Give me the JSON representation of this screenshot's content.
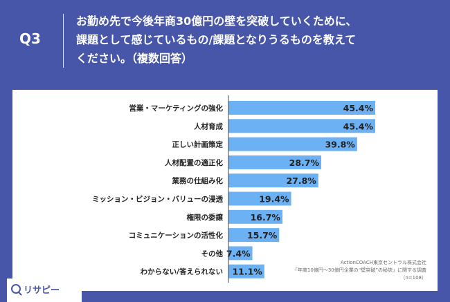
{
  "question": {
    "label": "Q3",
    "lines": [
      "お勤め先で今後年商30億円の壁を突破していくために、",
      "課題として感じているもの/課題となりうるものを教えて",
      "ください。（複数回答）"
    ]
  },
  "chart_data": {
    "type": "bar",
    "orientation": "horizontal",
    "categories": [
      "営業・マーケティングの強化",
      "人材育成",
      "正しい計画策定",
      "人材配置の適正化",
      "業務の仕組み化",
      "ミッション・ビジョン・バリューの浸透",
      "権限の委譲",
      "コミュニケーションの活性化",
      "その他",
      "わからない/答えられない"
    ],
    "values": [
      45.4,
      45.4,
      39.8,
      28.7,
      27.8,
      19.4,
      16.7,
      15.7,
      7.4,
      11.1
    ],
    "value_labels": [
      "45.4%",
      "45.4%",
      "39.8%",
      "28.7%",
      "27.8%",
      "19.4%",
      "16.7%",
      "15.7%",
      "7.4%",
      "11.1%"
    ],
    "xlim": [
      0,
      45.4
    ],
    "bar_color": "#6db1f5",
    "grid": false
  },
  "source": {
    "lines": [
      "ActionCOACH東京セントラル株式会社",
      "「年商10億円〜30億円企業の“壁突破”の秘訣」に関する調査",
      "（n=108）"
    ]
  },
  "logo": {
    "text": "リサピー",
    "icon": "search-icon"
  },
  "colors": {
    "background": "#4756a8",
    "card": "#ffffff",
    "text": "#222222"
  }
}
